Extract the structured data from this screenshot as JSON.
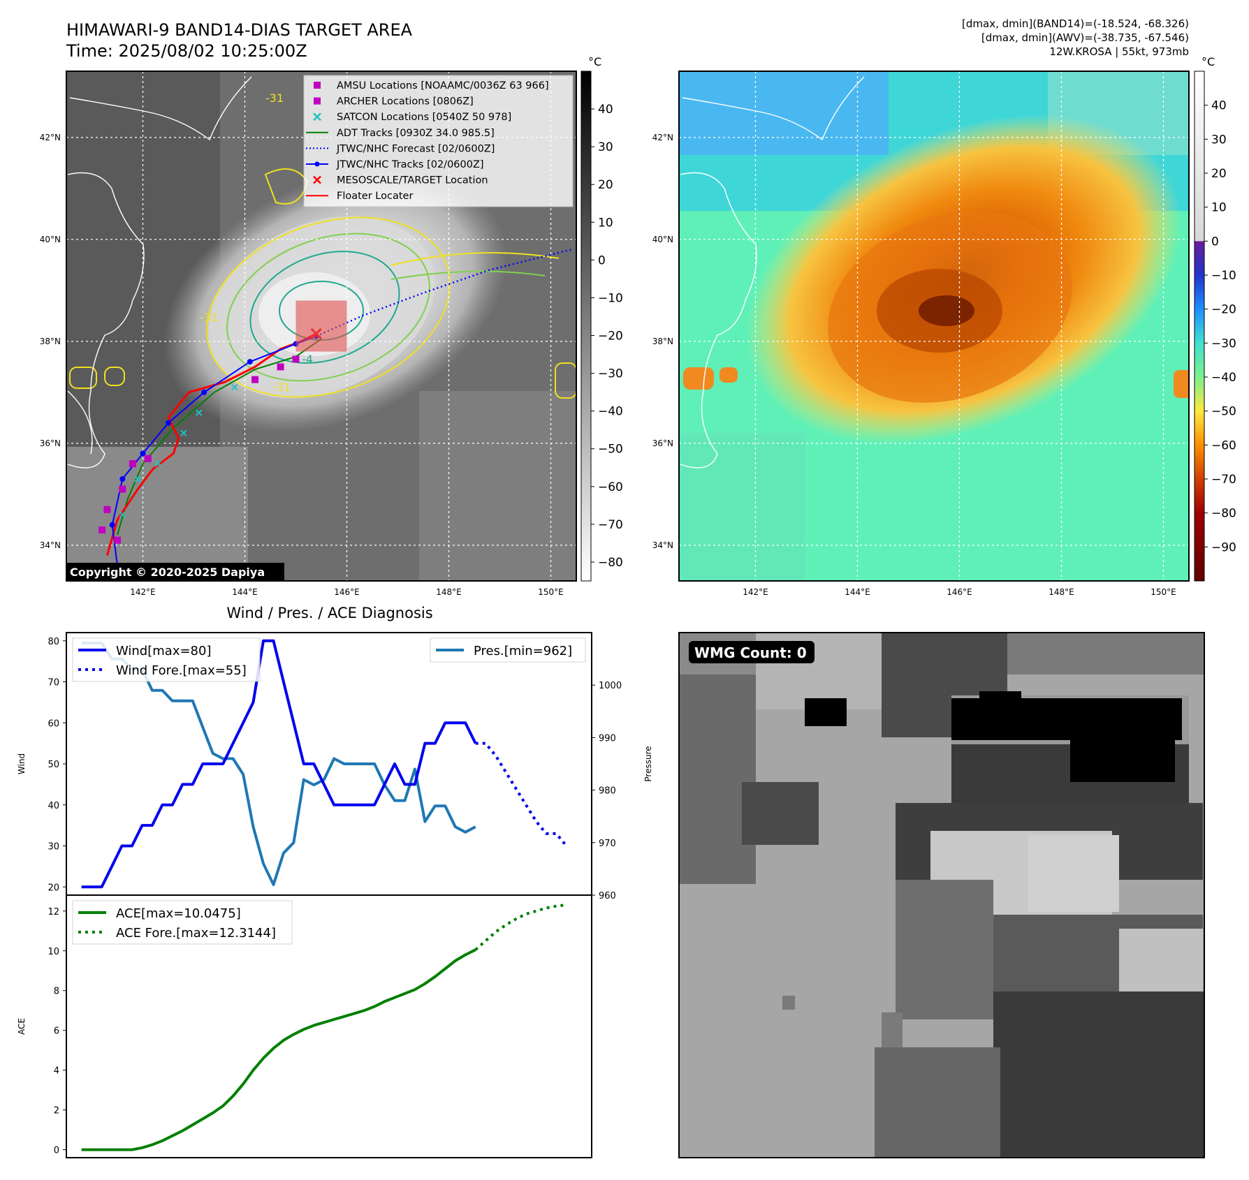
{
  "header": {
    "title": "HIMAWARI-9 BAND14-DIAS TARGET AREA",
    "time": "Time: 2025/08/02 10:25:00Z",
    "info_line1": "[dmax, dmin](BAND14)=(-18.524, -68.326)",
    "info_line2": "[dmax, dmin](AWV)=(-38.735, -67.546)",
    "info_line3": "12W.KROSA | 55kt, 973mb"
  },
  "map": {
    "lon_ticks": [
      "142°E",
      "144°E",
      "146°E",
      "148°E",
      "150°E"
    ],
    "lat_ticks": [
      "42°N",
      "40°N",
      "38°N",
      "36°N",
      "34°N"
    ],
    "lon_range": [
      140.5,
      150.5
    ],
    "lat_range": [
      33.3,
      43.3
    ],
    "copyright": "Copyright © 2020-2025 Dapiya",
    "contour_labels": [
      "-31",
      "-31",
      "-31",
      "-4"
    ],
    "legend": [
      {
        "label": "AMSU Locations [NOAAMC/0036Z 63 966]",
        "symbol": "square",
        "color": "#c000c0"
      },
      {
        "label": "ARCHER Locations [0806Z]",
        "symbol": "square",
        "color": "#c000c0"
      },
      {
        "label": "SATCON Locations [0540Z 50 978]",
        "symbol": "x",
        "color": "#20c0c0"
      },
      {
        "label": "ADT Tracks [0930Z 34.0 985.5]",
        "symbol": "line",
        "color": "#008000"
      },
      {
        "label": "JTWC/NHC Forecast [02/0600Z]",
        "symbol": "dotted",
        "color": "#0000ff"
      },
      {
        "label": "JTWC/NHC Tracks [02/0600Z]",
        "symbol": "line-dot",
        "color": "#0000ff"
      },
      {
        "label": "MESOSCALE/TARGET Location",
        "symbol": "x",
        "color": "#ff0000"
      },
      {
        "label": "Floater Locater",
        "symbol": "line",
        "color": "#ff0000"
      }
    ],
    "jtwc_track": [
      [
        141.5,
        33.6
      ],
      [
        141.4,
        34.4
      ],
      [
        141.6,
        35.3
      ],
      [
        142.0,
        35.8
      ],
      [
        142.5,
        36.4
      ],
      [
        143.2,
        37.0
      ],
      [
        144.1,
        37.6
      ],
      [
        145.0,
        37.95
      ],
      [
        145.4,
        38.1
      ]
    ],
    "jtwc_forecast": [
      [
        145.4,
        38.1
      ],
      [
        146.3,
        38.5
      ],
      [
        147.5,
        38.95
      ],
      [
        148.8,
        39.4
      ],
      [
        150.4,
        39.8
      ]
    ],
    "floater_track": [
      [
        141.3,
        33.8
      ],
      [
        141.5,
        34.5
      ],
      [
        141.9,
        35.1
      ],
      [
        142.2,
        35.5
      ],
      [
        142.6,
        35.8
      ],
      [
        142.7,
        36.1
      ],
      [
        142.5,
        36.5
      ],
      [
        142.9,
        37.0
      ],
      [
        143.6,
        37.2
      ],
      [
        144.2,
        37.5
      ],
      [
        144.7,
        37.85
      ],
      [
        145.1,
        38.0
      ],
      [
        145.4,
        38.15
      ]
    ],
    "adt_track": [
      [
        141.5,
        34.2
      ],
      [
        141.7,
        34.9
      ],
      [
        142.0,
        35.6
      ],
      [
        142.6,
        36.3
      ],
      [
        143.4,
        37.0
      ],
      [
        144.2,
        37.45
      ],
      [
        145.0,
        37.7
      ],
      [
        145.5,
        38.05
      ]
    ],
    "amsu_points": [
      [
        141.2,
        34.3
      ],
      [
        141.5,
        34.1
      ],
      [
        141.3,
        34.7
      ],
      [
        141.6,
        35.1
      ],
      [
        141.8,
        35.6
      ],
      [
        142.1,
        35.7
      ],
      [
        144.2,
        37.25
      ],
      [
        144.7,
        37.5
      ],
      [
        145.0,
        37.65
      ]
    ],
    "satcon_points": [
      [
        141.6,
        34.6
      ],
      [
        141.9,
        35.3
      ],
      [
        142.3,
        35.6
      ],
      [
        142.8,
        36.2
      ],
      [
        143.1,
        36.6
      ],
      [
        143.8,
        37.1
      ]
    ],
    "target_center": [
      145.4,
      38.15
    ],
    "target_box": [
      [
        145.0,
        37.8
      ],
      [
        146.0,
        38.8
      ]
    ]
  },
  "colorbar_left": {
    "unit": "°C",
    "ticks": [
      "40",
      "30",
      "20",
      "10",
      "0",
      "−10",
      "−20",
      "−30",
      "−40",
      "−50",
      "−60",
      "−70",
      "−80"
    ],
    "range": [
      -85,
      50
    ]
  },
  "colorbar_right": {
    "unit": "°C",
    "ticks": [
      "40",
      "30",
      "20",
      "10",
      "0",
      "−10",
      "−20",
      "−30",
      "−40",
      "−50",
      "−60",
      "−70",
      "−80",
      "−90"
    ],
    "range": [
      -100,
      50
    ]
  },
  "chart_data": [
    {
      "type": "line",
      "title": "Wind / Pres. / ACE Diagnosis",
      "ylabel": "Wind",
      "y2label": "Pressure",
      "ylim": [
        18,
        82
      ],
      "y2lim": [
        960,
        1010
      ],
      "yticks": [
        "80",
        "70",
        "60",
        "50",
        "40",
        "30",
        "20"
      ],
      "y2ticks": [
        "1000",
        "990",
        "980",
        "970",
        "960"
      ],
      "series": [
        {
          "name": "Wind[max=80]",
          "axis": "left",
          "style": "solid",
          "color": "#0000ee",
          "values": [
            20,
            20,
            20,
            25,
            30,
            30,
            35,
            35,
            40,
            40,
            45,
            45,
            50,
            50,
            50,
            55,
            60,
            65,
            80,
            80,
            70,
            60,
            50,
            50,
            45,
            40,
            40,
            40,
            40,
            40,
            45,
            50,
            45,
            45,
            55,
            55,
            60,
            60,
            60,
            55
          ]
        },
        {
          "name": "Wind Fore.[max=55]",
          "axis": "left",
          "style": "dotted",
          "color": "#0000ee",
          "x_start": 39,
          "values": [
            55,
            55,
            52,
            48,
            44,
            40,
            36,
            33,
            33,
            30
          ]
        },
        {
          "name": "Pres.[min=962]",
          "axis": "right",
          "style": "solid",
          "color": "#1f77b4",
          "values": [
            1008,
            1008,
            1008,
            1005,
            1005,
            1003,
            1003,
            999,
            999,
            997,
            997,
            997,
            992,
            987,
            986,
            986,
            983,
            973,
            966,
            962,
            968,
            970,
            982,
            981,
            982,
            986,
            985,
            985,
            985,
            985,
            981,
            978,
            978,
            984,
            974,
            977,
            977,
            973,
            972,
            973
          ]
        }
      ]
    },
    {
      "type": "line",
      "ylabel": "ACE",
      "ylim": [
        -0.4,
        12.8
      ],
      "yticks": [
        "12",
        "10",
        "8",
        "6",
        "4",
        "2",
        "0"
      ],
      "series": [
        {
          "name": "ACE[max=10.0475]",
          "style": "solid",
          "color": "#008000",
          "values": [
            0,
            0,
            0,
            0,
            0,
            0,
            0.1,
            0.25,
            0.45,
            0.7,
            0.95,
            1.25,
            1.55,
            1.85,
            2.2,
            2.7,
            3.3,
            4.0,
            4.6,
            5.1,
            5.5,
            5.8,
            6.05,
            6.25,
            6.4,
            6.55,
            6.7,
            6.85,
            7.0,
            7.2,
            7.45,
            7.65,
            7.85,
            8.05,
            8.35,
            8.7,
            9.1,
            9.5,
            9.8,
            10.05
          ]
        },
        {
          "name": "ACE Fore.[max=12.3144]",
          "style": "dotted",
          "color": "#008000",
          "x_start": 39,
          "values": [
            10.05,
            10.5,
            10.95,
            11.3,
            11.6,
            11.85,
            12.0,
            12.15,
            12.25,
            12.31
          ]
        }
      ]
    }
  ],
  "wmg": {
    "label": "WMG Count: 0"
  }
}
